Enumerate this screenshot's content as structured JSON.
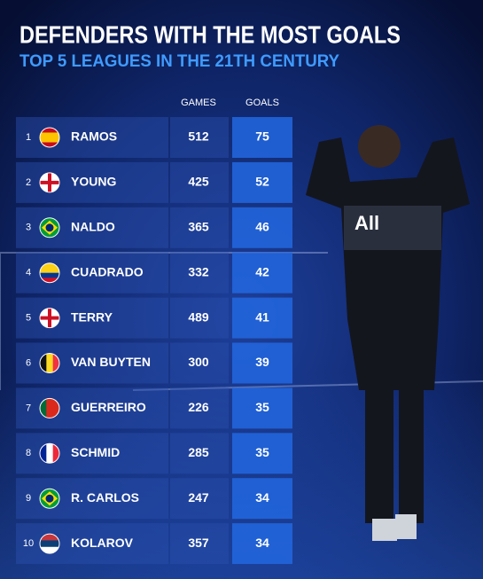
{
  "header": {
    "title": "DEFENDERS WITH THE MOST GOALS",
    "subtitle": "TOP 5 LEAGUES IN THE 21TH CENTURY"
  },
  "table": {
    "columns": [
      "GAMES",
      "GOALS"
    ],
    "rows": [
      [
        "1",
        "RAMOS",
        "512",
        "75"
      ],
      [
        "2",
        "YOUNG",
        "425",
        "52"
      ],
      [
        "3",
        "NALDO",
        "365",
        "46"
      ],
      [
        "4",
        "CUADRADO",
        "332",
        "42"
      ],
      [
        "5",
        "TERRY",
        "489",
        "41"
      ],
      [
        "6",
        "VAN BUYTEN",
        "300",
        "39"
      ],
      [
        "7",
        "GUERREIRO",
        "226",
        "35"
      ],
      [
        "8",
        "SCHMID",
        "285",
        "35"
      ],
      [
        "9",
        "R. CARLOS",
        "247",
        "34"
      ],
      [
        "10",
        "KOLAROV",
        "357",
        "34"
      ]
    ]
  }
}
